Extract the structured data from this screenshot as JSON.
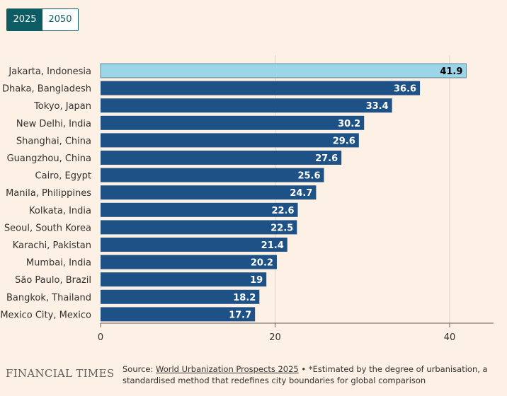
{
  "toggle": {
    "options": [
      "2025",
      "2050"
    ],
    "selected": "2025"
  },
  "colors": {
    "bar": "#1e5287",
    "highlight": "#9ad6e8",
    "background": "#fdf1e5",
    "toggle": "#0d5c63"
  },
  "chart_data": {
    "type": "bar",
    "orientation": "horizontal",
    "categories": [
      "Jakarta, Indonesia",
      "Dhaka, Bangladesh",
      "Tokyo, Japan",
      "New Delhi, India",
      "Shanghai, China",
      "Guangzhou, China",
      "Cairo, Egypt",
      "Manila, Philippines",
      "Kolkata, India",
      "Seoul, South Korea",
      "Karachi, Pakistan",
      "Mumbai, India",
      "São Paulo, Brazil",
      "Bangkok, Thailand",
      "Mexico City, Mexico"
    ],
    "values": [
      41.9,
      36.6,
      33.4,
      30.2,
      29.6,
      27.6,
      25.6,
      24.7,
      22.6,
      22.5,
      21.4,
      20.2,
      19,
      18.2,
      17.7
    ],
    "value_labels": [
      "41.9",
      "36.6",
      "33.4",
      "30.2",
      "29.6",
      "27.6",
      "25.6",
      "24.7",
      "22.6",
      "22.5",
      "21.4",
      "20.2",
      "19",
      "18.2",
      "17.7"
    ],
    "highlighted_category": "Jakarta, Indonesia",
    "xlim": [
      0,
      45
    ],
    "xticks": [
      0,
      20,
      40
    ],
    "xtick_labels": [
      "0",
      "20",
      "40"
    ],
    "grid": true
  },
  "footer": {
    "brand": "FINANCIAL TIMES",
    "source_prefix": "Source: ",
    "source_link": "World Urbanization Prospects 2025",
    "source_note": " • *Estimated by the degree of urbanisation, a standardised method that redefines city boundaries for global comparison"
  }
}
